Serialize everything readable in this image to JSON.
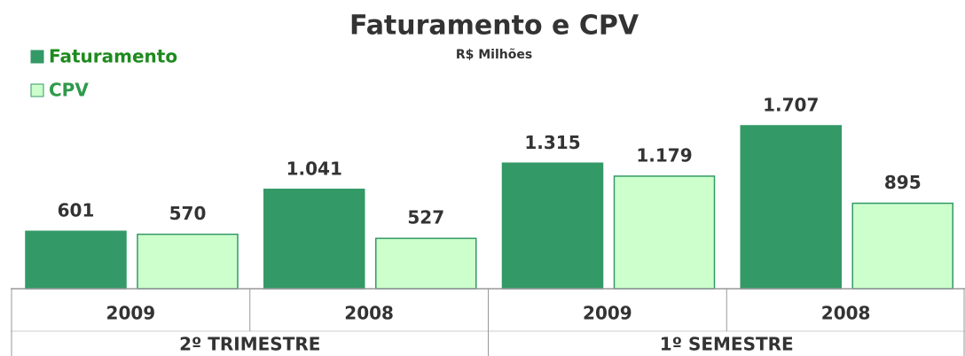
{
  "chart_data": {
    "type": "bar",
    "title": "Faturamento e CPV",
    "subtitle": "R$ Milhões",
    "categories": [
      "2009",
      "2008",
      "2009",
      "2008"
    ],
    "groups": [
      "2º TRIMESTRE",
      "1º SEMESTRE"
    ],
    "series": [
      {
        "name": "Faturamento",
        "color": "#339966",
        "values": [
          601,
          1041,
          1315,
          1707
        ],
        "value_labels": [
          "601",
          "1.041",
          "1.315",
          "1.707"
        ]
      },
      {
        "name": "CPV",
        "color": "#ccffcc",
        "values": [
          570,
          527,
          1179,
          895
        ],
        "value_labels": [
          "570",
          "527",
          "1.179",
          "895"
        ]
      }
    ],
    "legend": "top-left"
  }
}
